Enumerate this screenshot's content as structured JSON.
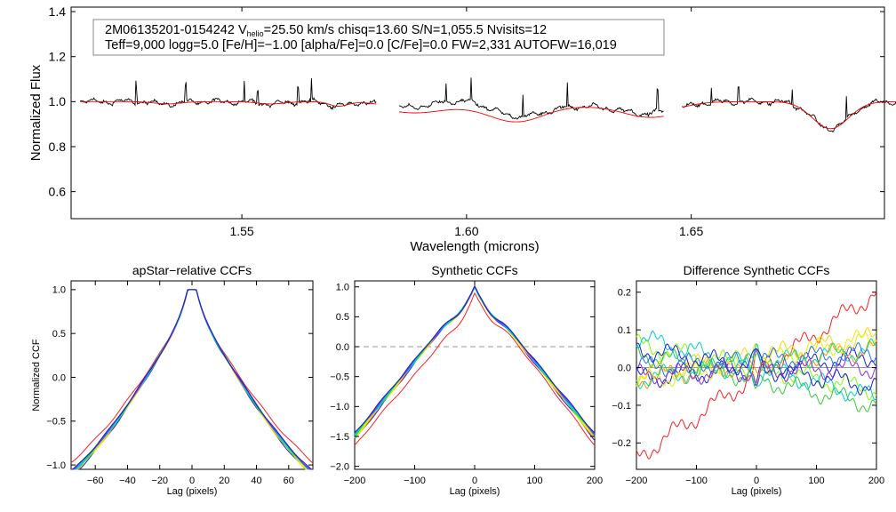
{
  "header": {
    "star_id": "2M06135201-0154242",
    "vhelio_label": "V",
    "vhelio_sub": "helio",
    "vhelio_value": "=25.50 km/s",
    "chisq": "chisq=13.60",
    "snr": "S/N=1,055.5",
    "nvisits": "Nvisits=12",
    "line2": "Teff=9,000 logg=5.0 [Fe/H]=−1.00 [alpha/Fe]=0.0 [C/Fe]=0.0 FW=2,331 AUTOFW=16,019"
  },
  "colors": {
    "observed": "#000000",
    "model": "#ff0000",
    "zero_line": "#999999",
    "series": [
      "#1f1fd0",
      "#ff2020",
      "#ff8c00",
      "#ffd700",
      "#e6f000",
      "#7fff00",
      "#32cd32",
      "#00e0a0",
      "#00ced1",
      "#2070ff",
      "#8a2be2"
    ]
  },
  "chart_data": [
    {
      "id": "spectrum",
      "type": "line",
      "title": "",
      "xlabel": "Wavelength (microns)",
      "ylabel": "Normalized Flux",
      "xlim": [
        1.512,
        1.693
      ],
      "ylim": [
        0.48,
        1.42
      ],
      "xticks": [
        1.55,
        1.6,
        1.65
      ],
      "xtick_labels": [
        "1.55",
        "1.60",
        "1.65"
      ],
      "yticks": [
        0.6,
        0.8,
        1.0,
        1.2,
        1.4
      ],
      "ytick_labels": [
        "0.6",
        "0.8",
        "1.0",
        "1.2",
        "1.4"
      ],
      "chips": [
        [
          1.514,
          1.58
        ],
        [
          1.585,
          1.644
        ],
        [
          1.648,
          1.696
        ]
      ],
      "series": [
        {
          "name": "observed",
          "color": "#000000"
        },
        {
          "name": "model",
          "color": "#ff0000"
        }
      ],
      "absorption_lines": [
        {
          "center": 1.5335,
          "depth": 0.01,
          "width": 0.003
        },
        {
          "center": 1.5565,
          "depth": 0.01,
          "width": 0.003
        },
        {
          "center": 1.5715,
          "depth": 0.02,
          "width": 0.002
        },
        {
          "center": 1.5885,
          "depth": 0.03,
          "width": 0.006
        },
        {
          "center": 1.611,
          "depth": 0.07,
          "width": 0.006
        },
        {
          "center": 1.641,
          "depth": 0.05,
          "width": 0.006
        },
        {
          "center": 1.681,
          "depth": 0.12,
          "width": 0.004
        }
      ],
      "emission_spikes": [
        1.5265,
        1.5375,
        1.5505,
        1.5535,
        1.5625,
        1.5655,
        1.5955,
        1.601,
        1.6125,
        1.6225,
        1.6425,
        1.6545,
        1.6605,
        1.6725,
        1.6845
      ]
    },
    {
      "id": "ccf_apstar",
      "type": "line",
      "title": "apStar−relative CCFs",
      "xlabel": "Lag (pixels)",
      "ylabel": "Normalized CCF",
      "xlim": [
        -75,
        75
      ],
      "ylim": [
        -1.05,
        1.1
      ],
      "xticks": [
        -60,
        -40,
        -20,
        0,
        20,
        40,
        60
      ],
      "xtick_labels": [
        "−60",
        "−40",
        "−20",
        "0",
        "20",
        "40",
        "60"
      ],
      "yticks": [
        -1.0,
        -0.5,
        0.0,
        0.5,
        1.0
      ],
      "ytick_labels": [
        "−1.0",
        "−0.5",
        "0.0",
        "0.5",
        "1.0"
      ],
      "n_series": 12
    },
    {
      "id": "ccf_synthetic",
      "type": "line",
      "title": "Synthetic CCFs",
      "xlabel": "Lag (pixels)",
      "ylabel": "",
      "xlim": [
        -200,
        200
      ],
      "ylim": [
        -2.05,
        1.1
      ],
      "xticks": [
        -200,
        -100,
        0,
        100,
        200
      ],
      "xtick_labels": [
        "−200",
        "−100",
        "0",
        "100",
        "200"
      ],
      "yticks": [
        -2.0,
        -1.5,
        -1.0,
        -0.5,
        0.0,
        0.5,
        1.0
      ],
      "ytick_labels": [
        "−2.0",
        "−1.5",
        "−1.0",
        "−0.5",
        "0.0",
        "0.5",
        "1.0"
      ],
      "reference_line_y": 0.0,
      "n_series": 12
    },
    {
      "id": "ccf_difference",
      "type": "line",
      "title": "Difference Synthetic CCFs",
      "xlabel": "Lag (pixels)",
      "ylabel": "",
      "xlim": [
        -200,
        200
      ],
      "ylim": [
        -0.27,
        0.23
      ],
      "xticks": [
        -200,
        -100,
        0,
        100,
        200
      ],
      "xtick_labels": [
        "−200",
        "−100",
        "0",
        "100",
        "200"
      ],
      "yticks": [
        -0.2,
        -0.1,
        0.0,
        0.1,
        0.2
      ],
      "ytick_labels": [
        "−0.2",
        "−0.1",
        "0.0",
        "0.1",
        "0.2"
      ],
      "reference_line_y": 0.0,
      "n_series": 12
    }
  ]
}
